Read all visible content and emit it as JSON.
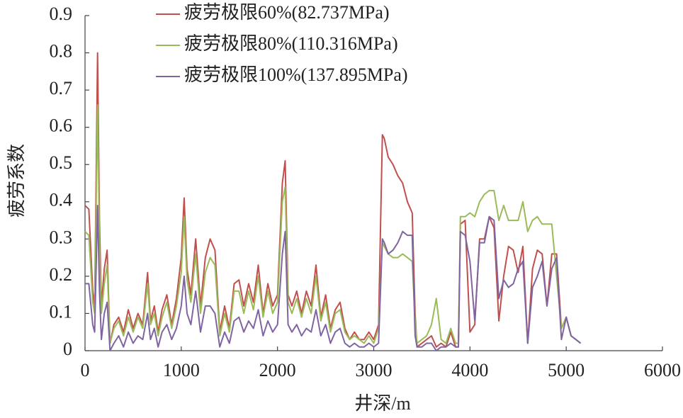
{
  "chart_data": {
    "type": "line",
    "xlabel": "井深/m",
    "ylabel": "疲劳系数",
    "xlim": [
      0,
      6000
    ],
    "xticks": [
      0,
      1000,
      2000,
      3000,
      4000,
      5000,
      6000
    ],
    "ylim": [
      0,
      0.9
    ],
    "yticks": [
      0,
      0.1,
      0.2,
      0.3,
      0.4,
      0.5,
      0.6,
      0.7,
      0.8,
      0.9
    ],
    "legend": "upper left",
    "x": [
      0,
      40,
      80,
      100,
      130,
      150,
      170,
      200,
      230,
      260,
      300,
      350,
      400,
      450,
      500,
      550,
      600,
      650,
      680,
      720,
      760,
      800,
      850,
      900,
      950,
      1000,
      1030,
      1060,
      1100,
      1150,
      1200,
      1250,
      1300,
      1350,
      1400,
      1450,
      1500,
      1550,
      1600,
      1650,
      1700,
      1750,
      1800,
      1850,
      1900,
      1950,
      2000,
      2050,
      2080,
      2110,
      2150,
      2200,
      2250,
      2300,
      2350,
      2400,
      2450,
      2500,
      2550,
      2600,
      2650,
      2700,
      2750,
      2800,
      2850,
      2900,
      2950,
      3000,
      3050,
      3090,
      3110,
      3150,
      3200,
      3250,
      3300,
      3350,
      3400,
      3430,
      3450,
      3500,
      3550,
      3600,
      3650,
      3700,
      3750,
      3800,
      3850,
      3880,
      3900,
      3950,
      4000,
      4050,
      4100,
      4150,
      4200,
      4250,
      4300,
      4350,
      4400,
      4450,
      4500,
      4550,
      4600,
      4650,
      4700,
      4750,
      4800,
      4850,
      4900,
      4950,
      5000,
      5050,
      5100,
      5150
    ],
    "series": [
      {
        "name": "疲劳极限60%(82.737MPa)",
        "color": "#c0504d",
        "values": [
          0.39,
          0.38,
          0.16,
          0.12,
          0.8,
          0.35,
          0.12,
          0.22,
          0.27,
          0.02,
          0.07,
          0.09,
          0.05,
          0.11,
          0.06,
          0.1,
          0.07,
          0.21,
          0.08,
          0.12,
          0.05,
          0.11,
          0.15,
          0.07,
          0.14,
          0.25,
          0.41,
          0.22,
          0.15,
          0.3,
          0.12,
          0.25,
          0.3,
          0.27,
          0.05,
          0.12,
          0.06,
          0.18,
          0.19,
          0.12,
          0.18,
          0.13,
          0.23,
          0.1,
          0.18,
          0.12,
          0.15,
          0.45,
          0.51,
          0.15,
          0.12,
          0.16,
          0.1,
          0.16,
          0.12,
          0.23,
          0.09,
          0.15,
          0.06,
          0.11,
          0.13,
          0.06,
          0.03,
          0.05,
          0.03,
          0.03,
          0.05,
          0.03,
          0.07,
          0.58,
          0.57,
          0.52,
          0.5,
          0.47,
          0.45,
          0.4,
          0.37,
          0.1,
          0.01,
          0.02,
          0.03,
          0.04,
          0.01,
          0.02,
          0.01,
          0.05,
          0.01,
          0.01,
          0.34,
          0.35,
          0.05,
          0.07,
          0.3,
          0.3,
          0.36,
          0.33,
          0.08,
          0.2,
          0.28,
          0.27,
          0.21,
          0.28,
          0.02,
          0.22,
          0.27,
          0.26,
          0.12,
          0.26,
          0.26,
          0.06,
          0.09,
          0.04,
          0.03,
          0.02
        ]
      },
      {
        "name": "疲劳极限80%(110.316MPa)",
        "color": "#9bbb59",
        "values": [
          0.32,
          0.31,
          0.13,
          0.1,
          0.66,
          0.28,
          0.1,
          0.18,
          0.23,
          0.02,
          0.06,
          0.08,
          0.04,
          0.09,
          0.05,
          0.09,
          0.06,
          0.18,
          0.07,
          0.1,
          0.04,
          0.09,
          0.13,
          0.06,
          0.12,
          0.21,
          0.36,
          0.19,
          0.13,
          0.26,
          0.1,
          0.21,
          0.25,
          0.23,
          0.04,
          0.1,
          0.05,
          0.16,
          0.16,
          0.1,
          0.16,
          0.11,
          0.2,
          0.09,
          0.16,
          0.1,
          0.13,
          0.4,
          0.44,
          0.13,
          0.1,
          0.14,
          0.09,
          0.14,
          0.1,
          0.2,
          0.08,
          0.13,
          0.05,
          0.1,
          0.11,
          0.05,
          0.03,
          0.04,
          0.03,
          0.02,
          0.04,
          0.02,
          0.06,
          0.29,
          0.28,
          0.26,
          0.25,
          0.25,
          0.26,
          0.25,
          0.24,
          0.08,
          0.02,
          0.03,
          0.04,
          0.07,
          0.14,
          0.03,
          0.02,
          0.06,
          0.02,
          0.02,
          0.36,
          0.36,
          0.37,
          0.36,
          0.4,
          0.42,
          0.43,
          0.43,
          0.35,
          0.39,
          0.35,
          0.35,
          0.35,
          0.4,
          0.32,
          0.35,
          0.36,
          0.34,
          0.34,
          0.34,
          0.2,
          0.06,
          0.09,
          0.04,
          0.03,
          0.02
        ]
      },
      {
        "name": "疲劳极限100%(137.895MPa)",
        "color": "#8064a2",
        "values": [
          0.18,
          0.18,
          0.07,
          0.05,
          0.39,
          0.16,
          0.03,
          0.1,
          0.13,
          0.0,
          0.02,
          0.04,
          0.01,
          0.05,
          0.02,
          0.04,
          0.03,
          0.1,
          0.03,
          0.06,
          0.01,
          0.05,
          0.07,
          0.03,
          0.06,
          0.12,
          0.2,
          0.1,
          0.07,
          0.16,
          0.05,
          0.12,
          0.12,
          0.1,
          0.01,
          0.05,
          0.02,
          0.08,
          0.09,
          0.05,
          0.08,
          0.06,
          0.11,
          0.04,
          0.08,
          0.05,
          0.07,
          0.26,
          0.32,
          0.07,
          0.05,
          0.07,
          0.04,
          0.06,
          0.05,
          0.11,
          0.04,
          0.07,
          0.02,
          0.05,
          0.06,
          0.02,
          0.01,
          0.02,
          0.01,
          0.01,
          0.02,
          0.01,
          0.02,
          0.3,
          0.29,
          0.26,
          0.27,
          0.29,
          0.32,
          0.31,
          0.31,
          0.04,
          0.01,
          0.01,
          0.02,
          0.02,
          0.0,
          0.01,
          0.01,
          0.02,
          0.01,
          0.01,
          0.32,
          0.31,
          0.24,
          0.08,
          0.29,
          0.29,
          0.36,
          0.35,
          0.14,
          0.19,
          0.17,
          0.18,
          0.22,
          0.24,
          0.02,
          0.17,
          0.2,
          0.24,
          0.12,
          0.22,
          0.25,
          0.03,
          0.09,
          0.04,
          0.03,
          0.02
        ]
      }
    ]
  }
}
